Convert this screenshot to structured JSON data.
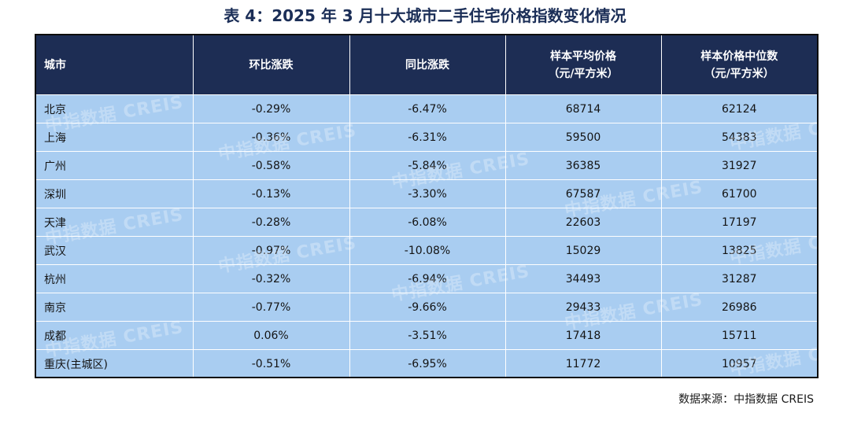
{
  "title": "表 4：2025 年 3 月十大城市二手住宅价格指数变化情况",
  "table": {
    "headers": [
      {
        "line1": "城市",
        "line2": ""
      },
      {
        "line1": "环比涨跌",
        "line2": ""
      },
      {
        "line1": "同比涨跌",
        "line2": ""
      },
      {
        "line1": "样本平均价格",
        "line2": "（元/平方米）"
      },
      {
        "line1": "样本价格中位数",
        "line2": "（元/平方米）"
      }
    ],
    "rows": [
      {
        "city": "北京",
        "mom": "-0.29%",
        "yoy": "-6.47%",
        "avg": "68714",
        "median": "62124"
      },
      {
        "city": "上海",
        "mom": "-0.36%",
        "yoy": "-6.31%",
        "avg": "59500",
        "median": "54383"
      },
      {
        "city": "广州",
        "mom": "-0.58%",
        "yoy": "-5.84%",
        "avg": "36385",
        "median": "31927"
      },
      {
        "city": "深圳",
        "mom": "-0.13%",
        "yoy": "-3.30%",
        "avg": "67587",
        "median": "61700"
      },
      {
        "city": "天津",
        "mom": "-0.28%",
        "yoy": "-6.08%",
        "avg": "22603",
        "median": "17197"
      },
      {
        "city": "武汉",
        "mom": "-0.97%",
        "yoy": "-10.08%",
        "avg": "15029",
        "median": "13825"
      },
      {
        "city": "杭州",
        "mom": "-0.32%",
        "yoy": "-6.94%",
        "avg": "34493",
        "median": "31287"
      },
      {
        "city": "南京",
        "mom": "-0.77%",
        "yoy": "-9.66%",
        "avg": "29433",
        "median": "26986"
      },
      {
        "city": "成都",
        "mom": "0.06%",
        "yoy": "-3.51%",
        "avg": "17418",
        "median": "15711"
      },
      {
        "city": "重庆(主城区)",
        "mom": "-0.51%",
        "yoy": "-6.95%",
        "avg": "11772",
        "median": "10957"
      }
    ]
  },
  "watermark": "中指数据 CREIS",
  "source": "数据来源：中指数据 CREIS",
  "colors": {
    "header_bg": "#1d2d54",
    "row_bg": "#a9cdf1",
    "title": "#1b2e57"
  }
}
